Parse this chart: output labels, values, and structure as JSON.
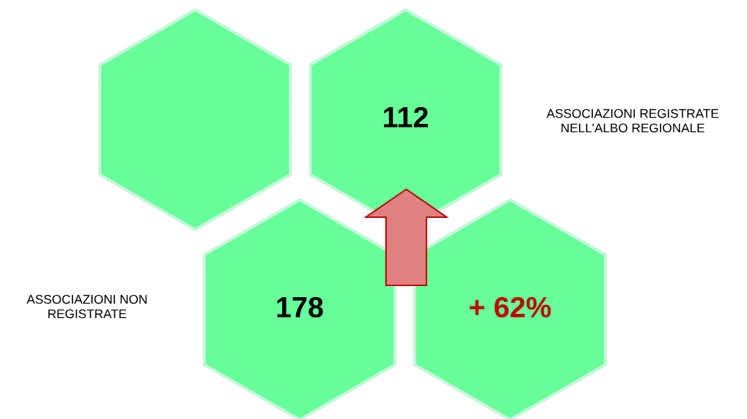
{
  "chart_data": {
    "type": "other",
    "categories": [
      "ASSOCIAZIONI REGISTRATE\nNELL'ALBO REGIONALE",
      "ASSOCIAZIONI NON\nREGISTRATE"
    ],
    "values": [
      112,
      178
    ],
    "color": "#66ff99",
    "data_labels": true,
    "annotations": [
      "+ 62%"
    ]
  }
}
